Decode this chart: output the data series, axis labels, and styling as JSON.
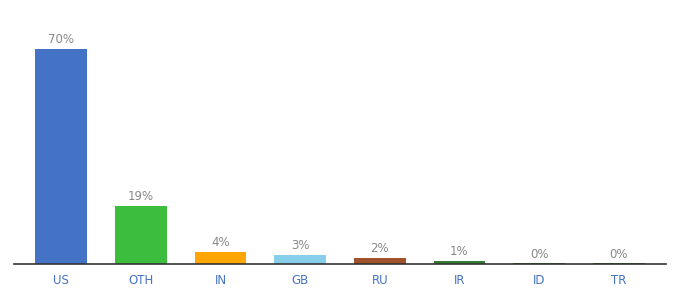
{
  "categories": [
    "US",
    "OTH",
    "IN",
    "GB",
    "RU",
    "IR",
    "ID",
    "TR"
  ],
  "values": [
    70,
    19,
    4,
    3,
    2,
    1,
    0.3,
    0.3
  ],
  "labels": [
    "70%",
    "19%",
    "4%",
    "3%",
    "2%",
    "1%",
    "0%",
    "0%"
  ],
  "bar_colors": [
    "#4472C4",
    "#3DBD3D",
    "#FFA500",
    "#87CEEB",
    "#A0522D",
    "#2E7D32",
    "#2E7D32",
    "#2E7D32"
  ],
  "background_color": "#ffffff",
  "ylim": [
    0,
    78
  ],
  "label_fontsize": 8.5,
  "tick_fontsize": 8.5,
  "label_color": "#888888",
  "tick_color": "#4472C4"
}
